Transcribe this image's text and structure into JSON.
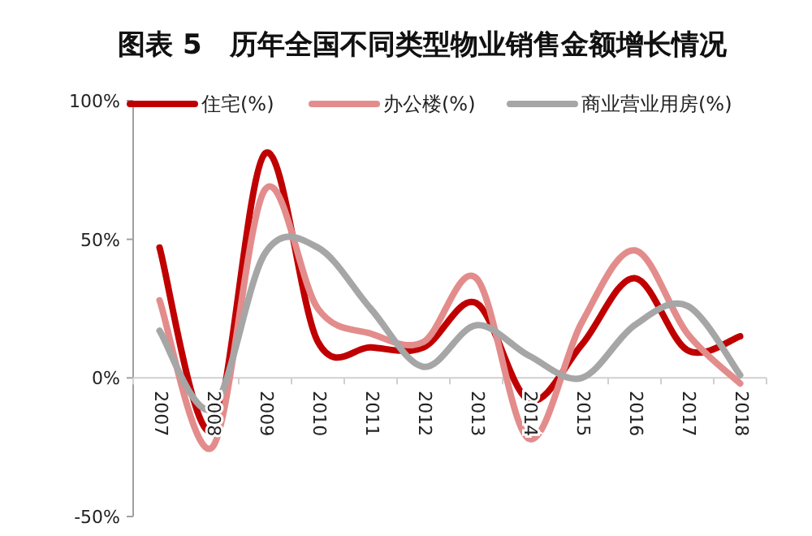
{
  "chart_data": {
    "type": "line",
    "title": "图表 5　历年全国不同类型物业销售金额增长情况",
    "categories": [
      "2007",
      "2008",
      "2009",
      "2010",
      "2011",
      "2012",
      "2013",
      "2014",
      "2015",
      "2016",
      "2017",
      "2018"
    ],
    "series": [
      {
        "name": "住宅(%)",
        "color": "#c00000",
        "values": [
          47,
          -19,
          81,
          13,
          11,
          11,
          27,
          -8,
          12,
          36,
          10,
          15
        ]
      },
      {
        "name": "办公楼(%)",
        "color": "#e38c8c",
        "values": [
          28,
          -25,
          68,
          25,
          16,
          13,
          36,
          -22,
          20,
          46,
          16,
          -2
        ]
      },
      {
        "name": "商业营业用房(%)",
        "color": "#a6a6a6",
        "values": [
          17,
          -11,
          45,
          47,
          25,
          4,
          19,
          8,
          0,
          19,
          26,
          1
        ]
      }
    ],
    "ylim": [
      -50,
      100
    ],
    "yticks": [
      {
        "value": -50,
        "label": "-50%"
      },
      {
        "value": 0,
        "label": "0%"
      },
      {
        "value": 50,
        "label": "50%"
      },
      {
        "value": 100,
        "label": "100%"
      }
    ],
    "legend": "top",
    "grid": false,
    "marker": "none",
    "line_style": "solid"
  }
}
